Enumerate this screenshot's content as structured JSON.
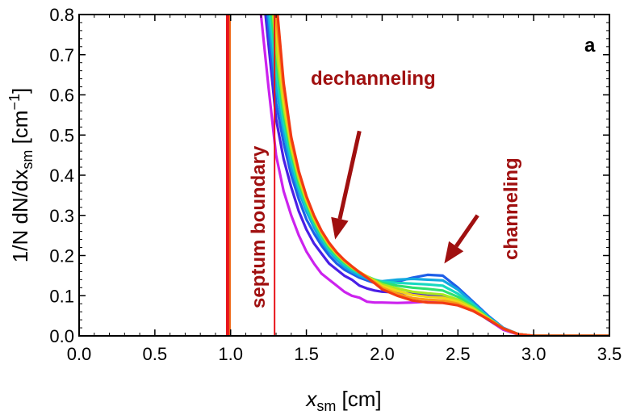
{
  "chart_data": {
    "type": "line",
    "panel_label": "a",
    "xlabel": {
      "main": "x",
      "sub": "sm",
      "unit": " [cm]"
    },
    "ylabel": {
      "prefix": "1/N dN/dx",
      "sub": "sm",
      "unit_open": " [cm",
      "sup": "−1",
      "unit_close": "]"
    },
    "xlim": [
      0.0,
      3.5
    ],
    "ylim": [
      0.0,
      0.8
    ],
    "xticks": [
      "0.0",
      "0.5",
      "1.0",
      "1.5",
      "2.0",
      "2.5",
      "3.0",
      "3.5"
    ],
    "yticks": [
      "0.0",
      "0.1",
      "0.2",
      "0.3",
      "0.4",
      "0.5",
      "0.6",
      "0.7",
      "0.8"
    ],
    "grid": false,
    "boundaries": [
      {
        "x": 0.98,
        "color": "#e8141a",
        "style": "thick"
      },
      {
        "x": 1.29,
        "color": "#e8141a",
        "style": "thin"
      }
    ],
    "annotations": {
      "septum": "septum boundary",
      "dechanneling": "dechanneling",
      "channeling": "channeling",
      "color": "#a01010"
    },
    "arrows": [
      {
        "from": [
          1.85,
          0.51
        ],
        "to": [
          1.69,
          0.24
        ]
      },
      {
        "from": [
          2.63,
          0.3
        ],
        "to": [
          2.41,
          0.18
        ]
      }
    ],
    "series": [
      {
        "color": "#cc22ee",
        "x": [
          1.2,
          1.25,
          1.3,
          1.35,
          1.4,
          1.45,
          1.5,
          1.55,
          1.6,
          1.65,
          1.7,
          1.75,
          1.8,
          1.85,
          1.9,
          1.95,
          2.0,
          2.1,
          2.2,
          2.3,
          2.4,
          2.5,
          2.6,
          2.7,
          2.8,
          2.9,
          3.0,
          3.2,
          3.5
        ],
        "y": [
          0.8,
          0.62,
          0.45,
          0.36,
          0.3,
          0.25,
          0.21,
          0.18,
          0.155,
          0.14,
          0.125,
          0.11,
          0.1,
          0.095,
          0.085,
          0.083,
          0.083,
          0.082,
          0.083,
          0.085,
          0.085,
          0.08,
          0.065,
          0.04,
          0.015,
          0.003,
          0.0,
          0.0,
          0.0
        ]
      },
      {
        "color": "#4a1ee6",
        "x": [
          1.23,
          1.3,
          1.35,
          1.4,
          1.45,
          1.5,
          1.55,
          1.6,
          1.65,
          1.7,
          1.75,
          1.8,
          1.85,
          1.9,
          1.95,
          2.0,
          2.1,
          2.2,
          2.3,
          2.4,
          2.5,
          2.6,
          2.7,
          2.8,
          2.9,
          3.0,
          3.2,
          3.5
        ],
        "y": [
          0.8,
          0.54,
          0.44,
          0.37,
          0.31,
          0.265,
          0.23,
          0.205,
          0.18,
          0.165,
          0.15,
          0.14,
          0.125,
          0.118,
          0.113,
          0.11,
          0.108,
          0.105,
          0.1,
          0.1,
          0.085,
          0.065,
          0.04,
          0.018,
          0.004,
          0.0,
          0.0,
          0.0
        ]
      },
      {
        "color": "#1e5ee8",
        "x": [
          1.24,
          1.3,
          1.35,
          1.4,
          1.45,
          1.5,
          1.55,
          1.6,
          1.65,
          1.7,
          1.75,
          1.8,
          1.85,
          1.9,
          1.95,
          2.0,
          2.1,
          2.2,
          2.3,
          2.4,
          2.5,
          2.6,
          2.7,
          2.8,
          2.9,
          3.0,
          3.2,
          3.5
        ],
        "y": [
          0.8,
          0.58,
          0.48,
          0.4,
          0.34,
          0.29,
          0.255,
          0.225,
          0.2,
          0.18,
          0.165,
          0.155,
          0.145,
          0.138,
          0.132,
          0.13,
          0.135,
          0.145,
          0.152,
          0.15,
          0.12,
          0.085,
          0.05,
          0.02,
          0.004,
          0.0,
          0.0,
          0.0
        ]
      },
      {
        "color": "#12a8e0",
        "x": [
          1.25,
          1.3,
          1.35,
          1.4,
          1.45,
          1.5,
          1.55,
          1.6,
          1.65,
          1.7,
          1.75,
          1.8,
          1.85,
          1.9,
          1.95,
          2.0,
          2.1,
          2.2,
          2.3,
          2.4,
          2.5,
          2.6,
          2.7,
          2.8,
          2.9,
          3.0,
          3.2,
          3.5
        ],
        "y": [
          0.8,
          0.62,
          0.51,
          0.42,
          0.36,
          0.31,
          0.27,
          0.235,
          0.21,
          0.19,
          0.172,
          0.16,
          0.15,
          0.142,
          0.138,
          0.136,
          0.14,
          0.142,
          0.14,
          0.138,
          0.115,
          0.082,
          0.048,
          0.019,
          0.004,
          0.0,
          0.0,
          0.0
        ]
      },
      {
        "color": "#18d8c0",
        "x": [
          1.26,
          1.3,
          1.35,
          1.4,
          1.45,
          1.5,
          1.55,
          1.6,
          1.65,
          1.7,
          1.75,
          1.8,
          1.85,
          1.9,
          1.95,
          2.0,
          2.1,
          2.2,
          2.3,
          2.4,
          2.5,
          2.6,
          2.7,
          2.8,
          2.9,
          3.0,
          3.2,
          3.5
        ],
        "y": [
          0.8,
          0.66,
          0.53,
          0.44,
          0.37,
          0.32,
          0.28,
          0.245,
          0.215,
          0.195,
          0.178,
          0.165,
          0.155,
          0.147,
          0.14,
          0.135,
          0.132,
          0.13,
          0.128,
          0.125,
          0.105,
          0.078,
          0.046,
          0.018,
          0.004,
          0.0,
          0.0,
          0.0
        ]
      },
      {
        "color": "#2ee070",
        "x": [
          1.27,
          1.3,
          1.35,
          1.4,
          1.45,
          1.5,
          1.55,
          1.6,
          1.65,
          1.7,
          1.75,
          1.8,
          1.85,
          1.9,
          1.95,
          2.0,
          2.1,
          2.2,
          2.3,
          2.4,
          2.5,
          2.6,
          2.7,
          2.8,
          2.9,
          3.0,
          3.2,
          3.5
        ],
        "y": [
          0.8,
          0.69,
          0.55,
          0.455,
          0.38,
          0.33,
          0.285,
          0.25,
          0.22,
          0.2,
          0.182,
          0.168,
          0.157,
          0.148,
          0.14,
          0.132,
          0.125,
          0.12,
          0.117,
          0.113,
          0.097,
          0.074,
          0.045,
          0.018,
          0.004,
          0.0,
          0.0,
          0.0
        ]
      },
      {
        "color": "#a8e820",
        "x": [
          1.28,
          1.3,
          1.35,
          1.4,
          1.45,
          1.5,
          1.55,
          1.6,
          1.65,
          1.7,
          1.75,
          1.8,
          1.85,
          1.9,
          1.95,
          2.0,
          2.1,
          2.2,
          2.3,
          2.4,
          2.5,
          2.6,
          2.7,
          2.8,
          2.9,
          3.0,
          3.2,
          3.5
        ],
        "y": [
          0.8,
          0.72,
          0.57,
          0.465,
          0.39,
          0.335,
          0.29,
          0.255,
          0.225,
          0.203,
          0.185,
          0.17,
          0.158,
          0.148,
          0.138,
          0.128,
          0.118,
          0.11,
          0.106,
          0.103,
          0.09,
          0.07,
          0.044,
          0.018,
          0.004,
          0.0,
          0.0,
          0.0
        ]
      },
      {
        "color": "#f0d818",
        "x": [
          1.29,
          1.35,
          1.4,
          1.45,
          1.5,
          1.55,
          1.6,
          1.65,
          1.7,
          1.75,
          1.8,
          1.85,
          1.9,
          1.95,
          2.0,
          2.1,
          2.2,
          2.3,
          2.4,
          2.5,
          2.6,
          2.7,
          2.8,
          2.9,
          3.0,
          3.2,
          3.5
        ],
        "y": [
          0.8,
          0.59,
          0.475,
          0.4,
          0.34,
          0.295,
          0.258,
          0.228,
          0.205,
          0.187,
          0.172,
          0.159,
          0.148,
          0.136,
          0.124,
          0.112,
          0.102,
          0.097,
          0.095,
          0.085,
          0.067,
          0.043,
          0.018,
          0.004,
          0.0,
          0.0,
          0.0
        ]
      },
      {
        "color": "#f89a18",
        "x": [
          1.3,
          1.35,
          1.4,
          1.45,
          1.5,
          1.55,
          1.6,
          1.65,
          1.7,
          1.75,
          1.8,
          1.85,
          1.9,
          1.95,
          2.0,
          2.1,
          2.2,
          2.3,
          2.4,
          2.5,
          2.6,
          2.7,
          2.8,
          2.9,
          3.0,
          3.2,
          3.5
        ],
        "y": [
          0.8,
          0.61,
          0.485,
          0.405,
          0.345,
          0.298,
          0.26,
          0.23,
          0.207,
          0.188,
          0.173,
          0.159,
          0.147,
          0.134,
          0.12,
          0.105,
          0.094,
          0.09,
          0.088,
          0.08,
          0.064,
          0.042,
          0.018,
          0.004,
          0.0,
          0.0,
          0.0
        ]
      },
      {
        "color": "#f23a12",
        "x": [
          1.31,
          1.35,
          1.4,
          1.45,
          1.5,
          1.55,
          1.6,
          1.65,
          1.7,
          1.75,
          1.8,
          1.85,
          1.9,
          1.95,
          2.0,
          2.1,
          2.2,
          2.3,
          2.4,
          2.5,
          2.6,
          2.7,
          2.8,
          2.9,
          3.0,
          3.2,
          3.5
        ],
        "y": [
          0.8,
          0.63,
          0.495,
          0.41,
          0.348,
          0.3,
          0.262,
          0.232,
          0.208,
          0.189,
          0.173,
          0.158,
          0.145,
          0.131,
          0.116,
          0.1,
          0.088,
          0.083,
          0.082,
          0.076,
          0.062,
          0.041,
          0.018,
          0.004,
          0.0,
          0.0,
          0.0
        ]
      }
    ]
  }
}
